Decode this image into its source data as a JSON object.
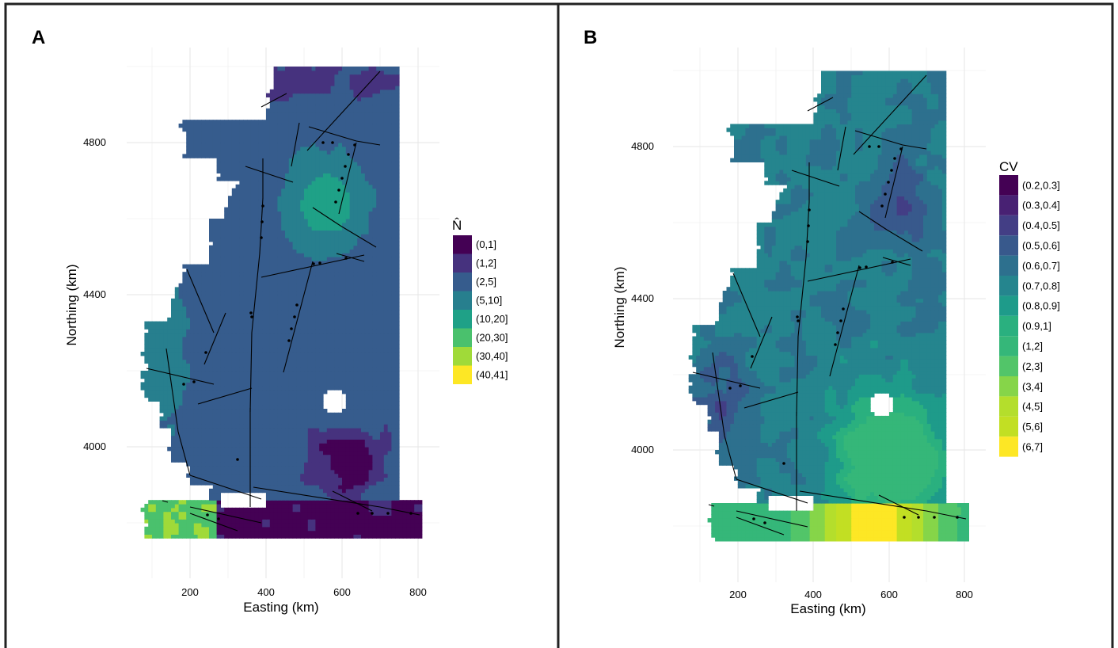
{
  "panels": [
    {
      "letter": "A",
      "xlabel": "Easting (km)",
      "ylabel": "Northing (km)",
      "xticks": [
        "200",
        "400",
        "600",
        "800"
      ],
      "yticks": [
        "4000",
        "4400",
        "4800"
      ],
      "legend": {
        "title": "N̂",
        "position": "right",
        "items": [
          {
            "label": "(0,1]",
            "color": "#440154"
          },
          {
            "label": "(1,2]",
            "color": "#46327e"
          },
          {
            "label": "(2,5]",
            "color": "#365c8d"
          },
          {
            "label": "(5,10]",
            "color": "#277f8e"
          },
          {
            "label": "(10,20]",
            "color": "#1fa187"
          },
          {
            "label": "(20,30]",
            "color": "#4ac16d"
          },
          {
            "label": "(30,40]",
            "color": "#a0da39"
          },
          {
            "label": "(40,41]",
            "color": "#fde725"
          }
        ]
      }
    },
    {
      "letter": "B",
      "xlabel": "Easting (km)",
      "ylabel": "Northing (km)",
      "xticks": [
        "200",
        "400",
        "600",
        "800"
      ],
      "yticks": [
        "4000",
        "4400",
        "4800"
      ],
      "legend": {
        "title": "CV",
        "position": "right",
        "items": [
          {
            "label": "(0.2,0.3]",
            "color": "#440154"
          },
          {
            "label": "(0.3,0.4]",
            "color": "#482173"
          },
          {
            "label": "(0.4,0.5]",
            "color": "#433e85"
          },
          {
            "label": "(0.5,0.6]",
            "color": "#38598c"
          },
          {
            "label": "(0.6,0.7]",
            "color": "#2d708e"
          },
          {
            "label": "(0.7,0.8]",
            "color": "#25858e"
          },
          {
            "label": "(0.8,0.9]",
            "color": "#1e9b8a"
          },
          {
            "label": "(0.9,1]",
            "color": "#2ab07f"
          },
          {
            "label": "(1,2]",
            "color": "#35b779"
          },
          {
            "label": "(2,3]",
            "color": "#52c569"
          },
          {
            "label": "(3,4]",
            "color": "#86d549"
          },
          {
            "label": "(4,5]",
            "color": "#b4de2c"
          },
          {
            "label": "(5,6]",
            "color": "#c2df23"
          },
          {
            "label": "(6,7]",
            "color": "#fde725"
          }
        ]
      }
    }
  ],
  "chart_data": [
    {
      "type": "heatmap",
      "title": "",
      "xlabel": "Easting (km)",
      "ylabel": "Northing (km)",
      "xlim": [
        60,
        840
      ],
      "ylim": [
        3750,
        5000
      ],
      "grid": true,
      "legend_position": "right",
      "legend_title": "N̂",
      "bins": [
        "(0,1]",
        "(1,2]",
        "(2,5]",
        "(5,10]",
        "(10,20]",
        "(20,30]",
        "(30,40]",
        "(40,41]"
      ]
    },
    {
      "type": "heatmap",
      "title": "",
      "xlabel": "Easting (km)",
      "ylabel": "Northing (km)",
      "xlim": [
        60,
        840
      ],
      "ylim": [
        3750,
        5000
      ],
      "grid": true,
      "legend_position": "right",
      "legend_title": "CV",
      "bins": [
        "(0.2,0.3]",
        "(0.3,0.4]",
        "(0.4,0.5]",
        "(0.5,0.6]",
        "(0.6,0.7]",
        "(0.7,0.8]",
        "(0.8,0.9]",
        "(0.9,1]",
        "(1,2]",
        "(2,3]",
        "(3,4]",
        "(4,5]",
        "(5,6]",
        "(6,7]"
      ]
    }
  ]
}
